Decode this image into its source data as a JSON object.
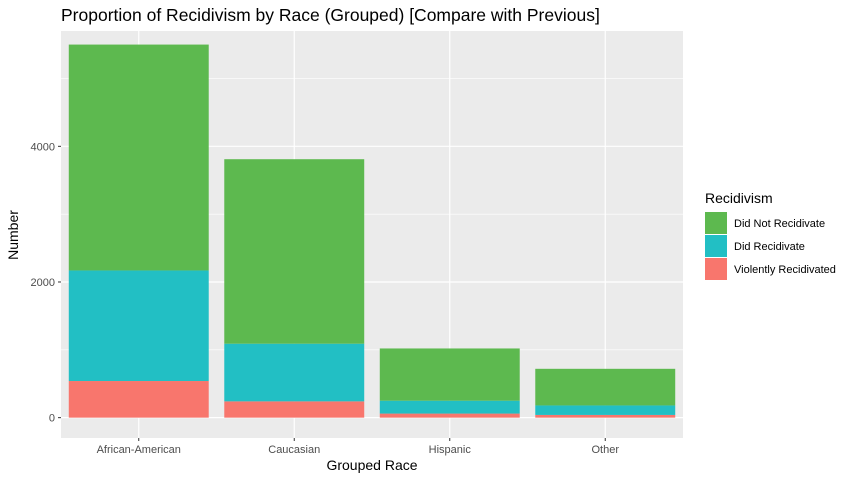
{
  "chart_data": {
    "type": "bar",
    "stacked": true,
    "title": "Proportion of Recidivism by Race (Grouped) [Compare with Previous]",
    "xlabel": "Grouped Race",
    "ylabel": "Number",
    "categories": [
      "African-American",
      "Caucasian",
      "Hispanic",
      "Other"
    ],
    "ylim": [
      -300,
      5700
    ],
    "yticks": [
      0,
      2000,
      4000
    ],
    "grid": true,
    "legend": {
      "title": "Recidivism",
      "placement": "right",
      "entries": [
        "Did Not Recidivate",
        "Did Recidivate",
        "Violently Recidivated"
      ]
    },
    "series": [
      {
        "name": "Violently Recidivated",
        "color": "#F8766D",
        "values": [
          540,
          240,
          60,
          40
        ]
      },
      {
        "name": "Did Recidivate",
        "color": "#22BFC4",
        "values": [
          1630,
          850,
          190,
          140
        ]
      },
      {
        "name": "Did Not Recidivate",
        "color": "#5DB94F",
        "values": [
          3330,
          2720,
          770,
          540
        ]
      }
    ]
  }
}
